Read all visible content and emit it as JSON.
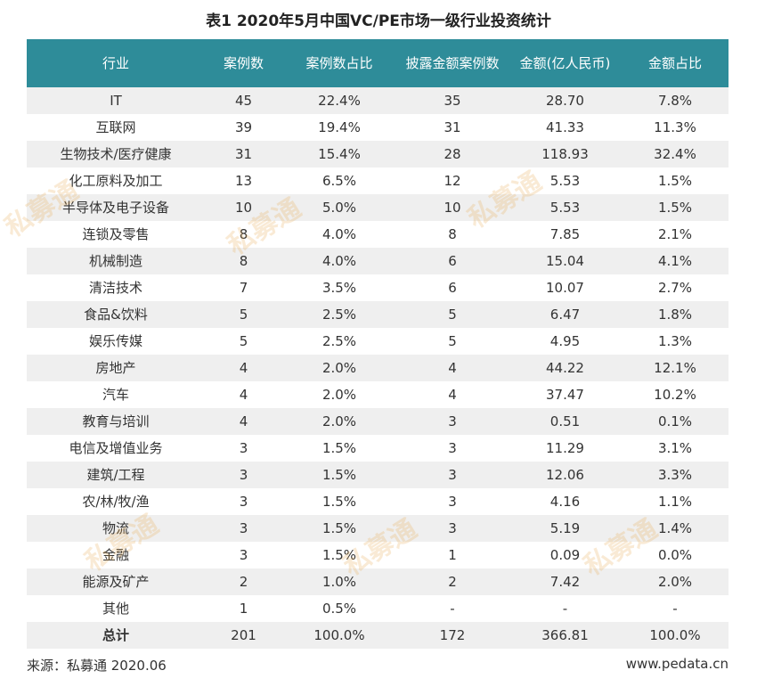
{
  "title": "表1  2020年5月中国VC/PE市场一级行业投资统计",
  "table": {
    "headers": [
      "行业",
      "案例数",
      "案例数占比",
      "披露金额案例数",
      "金额(亿人民币)",
      "金额占比"
    ],
    "rows": [
      [
        "IT",
        "45",
        "22.4%",
        "35",
        "28.70",
        "7.8%"
      ],
      [
        "互联网",
        "39",
        "19.4%",
        "31",
        "41.33",
        "11.3%"
      ],
      [
        "生物技术/医疗健康",
        "31",
        "15.4%",
        "28",
        "118.93",
        "32.4%"
      ],
      [
        "化工原料及加工",
        "13",
        "6.5%",
        "12",
        "5.53",
        "1.5%"
      ],
      [
        "半导体及电子设备",
        "10",
        "5.0%",
        "10",
        "5.53",
        "1.5%"
      ],
      [
        "连锁及零售",
        "8",
        "4.0%",
        "8",
        "7.85",
        "2.1%"
      ],
      [
        "机械制造",
        "8",
        "4.0%",
        "6",
        "15.04",
        "4.1%"
      ],
      [
        "清洁技术",
        "7",
        "3.5%",
        "6",
        "10.07",
        "2.7%"
      ],
      [
        "食品&饮料",
        "5",
        "2.5%",
        "5",
        "6.47",
        "1.8%"
      ],
      [
        "娱乐传媒",
        "5",
        "2.5%",
        "5",
        "4.95",
        "1.3%"
      ],
      [
        "房地产",
        "4",
        "2.0%",
        "4",
        "44.22",
        "12.1%"
      ],
      [
        "汽车",
        "4",
        "2.0%",
        "4",
        "37.47",
        "10.2%"
      ],
      [
        "教育与培训",
        "4",
        "2.0%",
        "3",
        "0.51",
        "0.1%"
      ],
      [
        "电信及增值业务",
        "3",
        "1.5%",
        "3",
        "11.29",
        "3.1%"
      ],
      [
        "建筑/工程",
        "3",
        "1.5%",
        "3",
        "12.06",
        "3.3%"
      ],
      [
        "农/林/牧/渔",
        "3",
        "1.5%",
        "3",
        "4.16",
        "1.1%"
      ],
      [
        "物流",
        "3",
        "1.5%",
        "3",
        "5.19",
        "1.4%"
      ],
      [
        "金融",
        "3",
        "1.5%",
        "1",
        "0.09",
        "0.0%"
      ],
      [
        "能源及矿产",
        "2",
        "1.0%",
        "2",
        "7.42",
        "2.0%"
      ],
      [
        "其他",
        "1",
        "0.5%",
        "-",
        "-",
        "-"
      ]
    ],
    "total": [
      "总计",
      "201",
      "100.0%",
      "172",
      "366.81",
      "100.0%"
    ]
  },
  "footer": {
    "source": "来源：私募通 2020.06",
    "website": "www.pedata.cn"
  },
  "watermark": "私募通",
  "colors": {
    "header_bg": "#2e8c99",
    "header_text": "#ffffff",
    "row_stripe": "#efefef",
    "watermark": "#e8a544"
  }
}
